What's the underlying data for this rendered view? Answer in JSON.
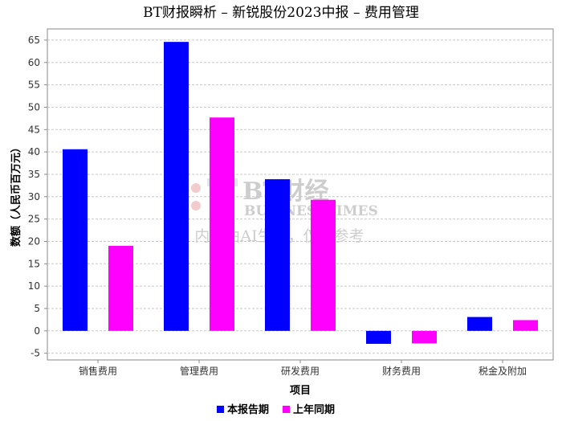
{
  "title": "BT财报瞬析 – 新锐股份2023中报 – 费用管理",
  "chart_data": {
    "type": "bar",
    "categories": [
      "销售费用",
      "管理费用",
      "研发费用",
      "财务费用",
      "税金及附加"
    ],
    "series": [
      {
        "name": "本报告期",
        "color": "#0000ff",
        "values": [
          40.6,
          64.6,
          33.9,
          -2.9,
          3.1
        ]
      },
      {
        "name": "上年同期",
        "color": "#ff00ff",
        "values": [
          19.0,
          47.7,
          29.3,
          -2.8,
          2.4
        ]
      }
    ],
    "xlabel": "项目",
    "ylabel": "数额（人民币百万元）",
    "ylim": [
      -6.5,
      67.5
    ],
    "yticks": [
      -5,
      0,
      5,
      10,
      15,
      20,
      25,
      30,
      35,
      40,
      45,
      50,
      55,
      60,
      65
    ],
    "grid": true,
    "legend_position": "bottom"
  },
  "watermark": {
    "logo_text": "BT财经",
    "brand_text": "BUSINESSTIMES",
    "note": "内容由AI生成，仅供参考"
  }
}
